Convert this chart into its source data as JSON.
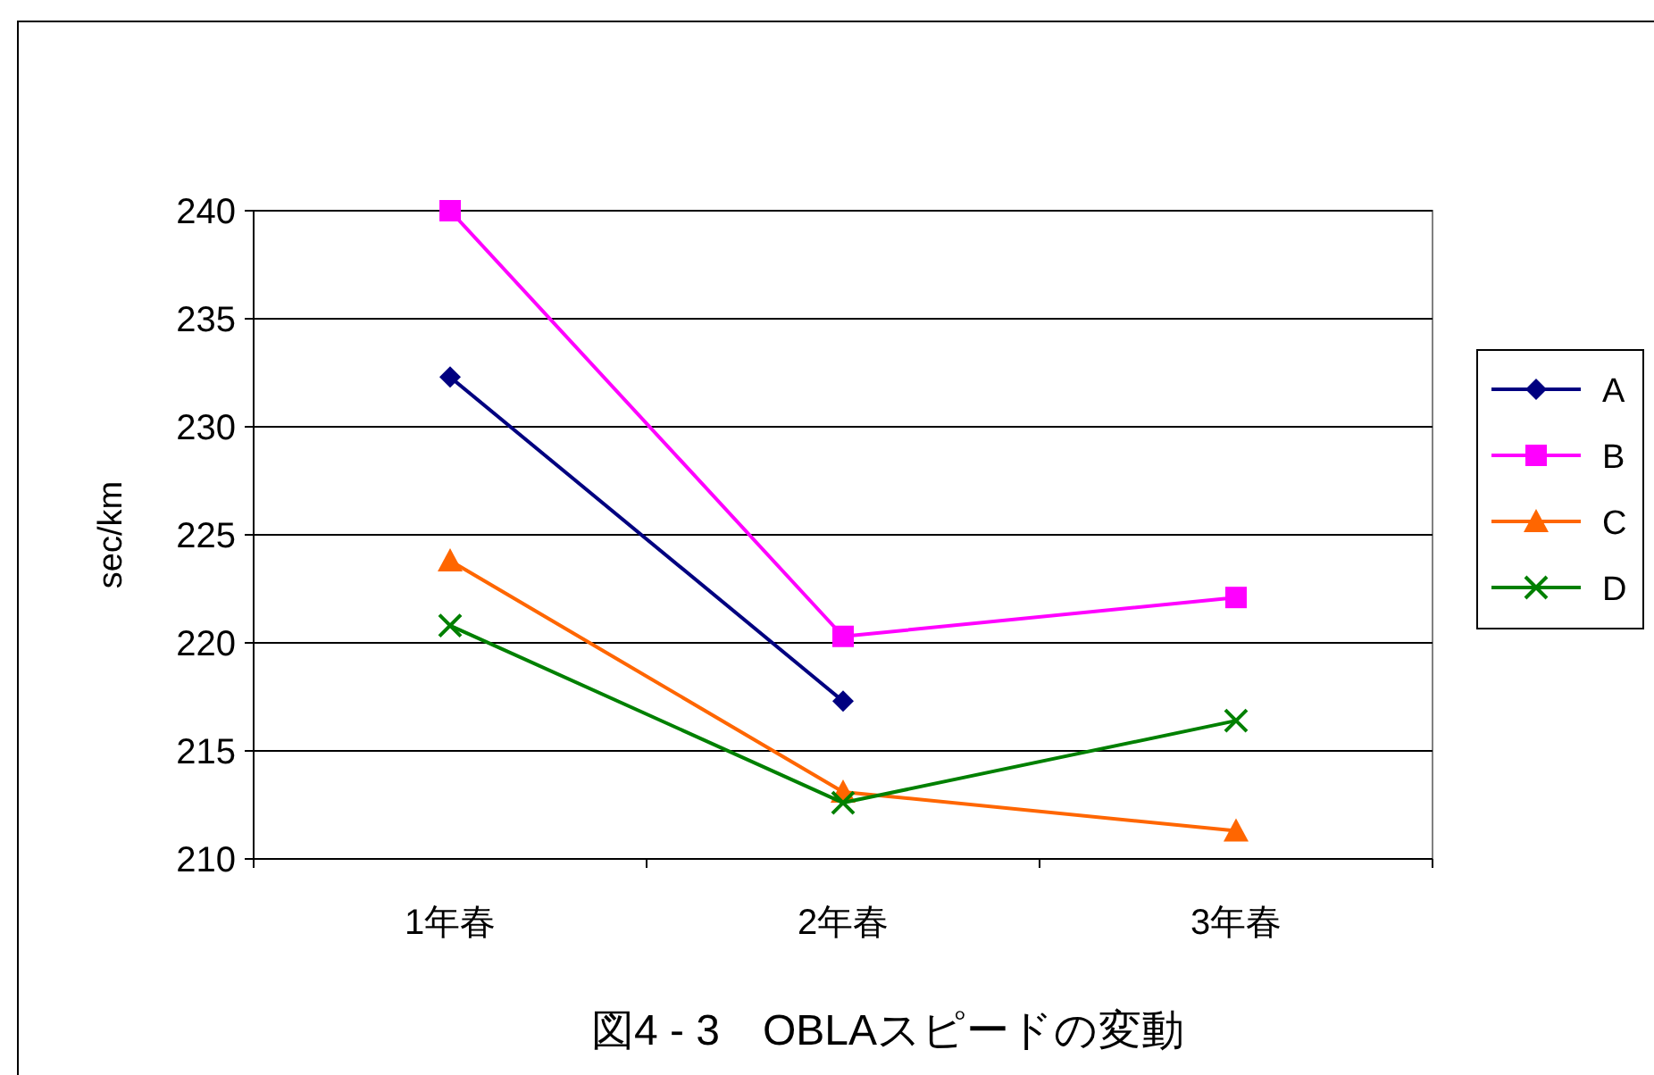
{
  "chart_data": {
    "type": "line",
    "title": "図4 - 3　OBLAスピードの変動",
    "ylabel": "sec/km",
    "categories": [
      "1年春",
      "2年春",
      "3年春"
    ],
    "ylim": [
      210,
      240
    ],
    "yticks": [
      210,
      215,
      220,
      225,
      230,
      235,
      240
    ],
    "grid": "y",
    "legend": "right",
    "series": [
      {
        "name": "A",
        "color": "#000080",
        "marker": "diamond",
        "values": [
          232.3,
          217.3,
          null
        ]
      },
      {
        "name": "B",
        "color": "#ff00ff",
        "marker": "square",
        "values": [
          240,
          220.3,
          222.1
        ]
      },
      {
        "name": "C",
        "color": "#ff6600",
        "marker": "triangle",
        "values": [
          223.8,
          213.1,
          211.3
        ]
      },
      {
        "name": "D",
        "color": "#008000",
        "marker": "cross",
        "values": [
          220.8,
          212.6,
          216.4
        ]
      }
    ]
  }
}
